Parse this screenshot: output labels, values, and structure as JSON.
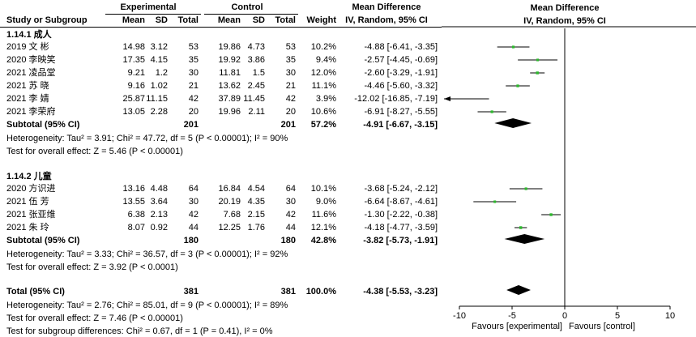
{
  "headers": {
    "study": "Study or Subgroup",
    "experimental": "Experimental",
    "control": "Control",
    "mean": "Mean",
    "sd": "SD",
    "total": "Total",
    "weight": "Weight",
    "md_title": "Mean Difference",
    "md_sub": "IV, Random, 95% CI",
    "plot_title": "Mean Difference",
    "plot_sub": "IV, Random, 95% CI"
  },
  "subgroups": [
    {
      "label": "1.14.1 成人",
      "studies": [
        {
          "name": "2019 文 彬",
          "e_mean": "14.98",
          "e_sd": "3.12",
          "e_total": "53",
          "c_mean": "19.86",
          "c_sd": "4.73",
          "c_total": "53",
          "weight": "10.2%",
          "ci_text": "-4.88 [-6.41, -3.35]"
        },
        {
          "name": "2020 李映笑",
          "e_mean": "17.35",
          "e_sd": "4.15",
          "e_total": "35",
          "c_mean": "19.92",
          "c_sd": "3.86",
          "c_total": "35",
          "weight": "9.4%",
          "ci_text": "-2.57 [-4.45, -0.69]"
        },
        {
          "name": "2021 凌品堂",
          "e_mean": "9.21",
          "e_sd": "1.2",
          "e_total": "30",
          "c_mean": "11.81",
          "c_sd": "1.5",
          "c_total": "30",
          "weight": "12.0%",
          "ci_text": "-2.60 [-3.29, -1.91]"
        },
        {
          "name": "2021 苏 晓",
          "e_mean": "9.16",
          "e_sd": "1.02",
          "e_total": "21",
          "c_mean": "13.62",
          "c_sd": "2.45",
          "c_total": "21",
          "weight": "11.1%",
          "ci_text": "-4.46 [-5.60, -3.32]"
        },
        {
          "name": "2021 李 婧",
          "e_mean": "25.87",
          "e_sd": "11.15",
          "e_total": "42",
          "c_mean": "37.89",
          "c_sd": "11.45",
          "c_total": "42",
          "weight": "3.9%",
          "ci_text": "-12.02 [-16.85, -7.19]"
        },
        {
          "name": "2021 李荣府",
          "e_mean": "13.05",
          "e_sd": "2.28",
          "e_total": "20",
          "c_mean": "19.96",
          "c_sd": "2.11",
          "c_total": "20",
          "weight": "10.6%",
          "ci_text": "-6.91 [-8.27, -5.55]"
        }
      ],
      "subtotal": {
        "label": "Subtotal (95% CI)",
        "e_total": "201",
        "c_total": "201",
        "weight": "57.2%",
        "ci_text": "-4.91 [-6.67, -3.15]"
      },
      "heterogeneity": "Heterogeneity: Tau² = 3.91; Chi² = 47.72, df = 5 (P < 0.00001); I² = 90%",
      "overall_test": "Test for overall effect: Z = 5.46 (P < 0.00001)"
    },
    {
      "label": "1.14.2 儿童",
      "studies": [
        {
          "name": "2020 方识进",
          "e_mean": "13.16",
          "e_sd": "4.48",
          "e_total": "64",
          "c_mean": "16.84",
          "c_sd": "4.54",
          "c_total": "64",
          "weight": "10.1%",
          "ci_text": "-3.68 [-5.24, -2.12]"
        },
        {
          "name": "2021 伍 芳",
          "e_mean": "13.55",
          "e_sd": "3.64",
          "e_total": "30",
          "c_mean": "20.19",
          "c_sd": "4.35",
          "c_total": "30",
          "weight": "9.0%",
          "ci_text": "-6.64 [-8.67, -4.61]"
        },
        {
          "name": "2021 张亚维",
          "e_mean": "6.38",
          "e_sd": "2.13",
          "e_total": "42",
          "c_mean": "7.68",
          "c_sd": "2.15",
          "c_total": "42",
          "weight": "11.6%",
          "ci_text": "-1.30 [-2.22, -0.38]"
        },
        {
          "name": "2021 朱 玲",
          "e_mean": "8.07",
          "e_sd": "0.92",
          "e_total": "44",
          "c_mean": "12.25",
          "c_sd": "1.76",
          "c_total": "44",
          "weight": "12.1%",
          "ci_text": "-4.18 [-4.77, -3.59]"
        }
      ],
      "subtotal": {
        "label": "Subtotal (95% CI)",
        "e_total": "180",
        "c_total": "180",
        "weight": "42.8%",
        "ci_text": "-3.82 [-5.73, -1.91]"
      },
      "heterogeneity": "Heterogeneity: Tau² = 3.33; Chi² = 36.57, df = 3 (P < 0.00001); I² = 92%",
      "overall_test": "Test for overall effect: Z = 3.92 (P < 0.0001)"
    }
  ],
  "total": {
    "label": "Total (95% CI)",
    "e_total": "381",
    "c_total": "381",
    "weight": "100.0%",
    "ci_text": "-4.38 [-5.53, -3.23]",
    "heterogeneity": "Heterogeneity: Tau² = 2.76; Chi² = 85.01, df = 9 (P < 0.00001); I² = 89%",
    "overall_test": "Test for overall effect: Z = 7.46 (P < 0.00001)",
    "subgroup_test": "Test for subgroup differences: Chi² = 0.67, df = 1 (P = 0.41), I² = 0%"
  },
  "axis": {
    "favours_left": "Favours [experimental]",
    "favours_right": "Favours [control]"
  },
  "colors": {
    "point": "#2db82d",
    "diamond": "#000000",
    "line": "#000000"
  },
  "chart_data": {
    "type": "forest",
    "xlim": [
      -10,
      10
    ],
    "ticks": [
      -10,
      -5,
      0,
      5,
      10
    ],
    "studies": [
      {
        "name": "2019 文 彬",
        "md": -4.88,
        "lo": -6.41,
        "hi": -3.35,
        "weight": 10.2
      },
      {
        "name": "2020 李映笑",
        "md": -2.57,
        "lo": -4.45,
        "hi": -0.69,
        "weight": 9.4
      },
      {
        "name": "2021 凌品堂",
        "md": -2.6,
        "lo": -3.29,
        "hi": -1.91,
        "weight": 12.0
      },
      {
        "name": "2021 苏 晓",
        "md": -4.46,
        "lo": -5.6,
        "hi": -3.32,
        "weight": 11.1
      },
      {
        "name": "2021 李 婧",
        "md": -12.02,
        "lo": -16.85,
        "hi": -7.19,
        "weight": 3.9
      },
      {
        "name": "2021 李荣府",
        "md": -6.91,
        "lo": -8.27,
        "hi": -5.55,
        "weight": 10.6
      },
      {
        "name": "2020 方识进",
        "md": -3.68,
        "lo": -5.24,
        "hi": -2.12,
        "weight": 10.1
      },
      {
        "name": "2021 伍 芳",
        "md": -6.64,
        "lo": -8.67,
        "hi": -4.61,
        "weight": 9.0
      },
      {
        "name": "2021 张亚维",
        "md": -1.3,
        "lo": -2.22,
        "hi": -0.38,
        "weight": 11.6
      },
      {
        "name": "2021 朱 玲",
        "md": -4.18,
        "lo": -4.77,
        "hi": -3.59,
        "weight": 12.1
      }
    ],
    "pooled": [
      {
        "name": "Subtotal 1.14.1",
        "md": -4.91,
        "lo": -6.67,
        "hi": -3.15
      },
      {
        "name": "Subtotal 1.14.2",
        "md": -3.82,
        "lo": -5.73,
        "hi": -1.91
      },
      {
        "name": "Total",
        "md": -4.38,
        "lo": -5.53,
        "hi": -3.23
      }
    ]
  }
}
